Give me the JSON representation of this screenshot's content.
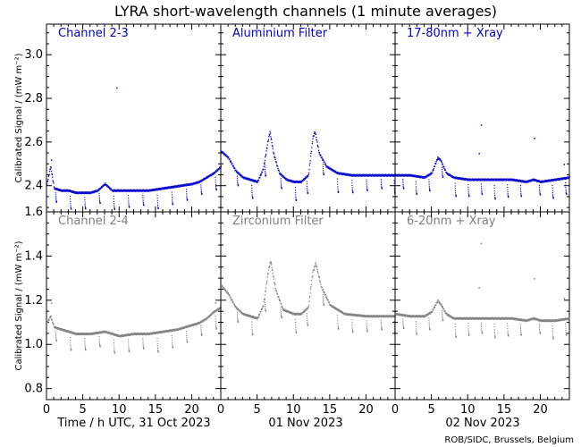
{
  "chart_data": {
    "type": "scatter",
    "title": "LYRA short-wavelength channels (1 minute averages)",
    "ylabel": "Calibrated Signal / (mW m⁻²)",
    "x_captions": [
      "Time / h UTC, 31 Oct 2023",
      "01 Nov 2023",
      "02 Nov 2023"
    ],
    "x_ticks": [
      0,
      5,
      10,
      15,
      20
    ],
    "x_range": [
      0,
      24
    ],
    "credit": "ROB/SIDC, Brussels, Belgium",
    "colors": {
      "top": "#0000cc",
      "bottom": "#808080"
    },
    "rows": [
      {
        "ylim": [
          2.28,
          3.14
        ],
        "yticks": [
          2.4,
          2.6,
          2.8,
          3.0
        ],
        "ytick_labels": [
          "2.4",
          "2.6",
          "2.8",
          "3.0"
        ],
        "panels": [
          {
            "label": "Channel 2-3",
            "series": [
              [
                0,
                2.41
              ],
              [
                0.5,
                2.49
              ],
              [
                1,
                2.39
              ],
              [
                2,
                2.38
              ],
              [
                3,
                2.38
              ],
              [
                4,
                2.37
              ],
              [
                5,
                2.37
              ],
              [
                6,
                2.37
              ],
              [
                7,
                2.38
              ],
              [
                8,
                2.41
              ],
              [
                9,
                2.38
              ],
              [
                10,
                2.38
              ],
              [
                12,
                2.38
              ],
              [
                14,
                2.38
              ],
              [
                16,
                2.39
              ],
              [
                18,
                2.4
              ],
              [
                20,
                2.41
              ],
              [
                21,
                2.42
              ],
              [
                22,
                2.44
              ],
              [
                23,
                2.46
              ],
              [
                24,
                2.49
              ]
            ],
            "dips": [
              1.2,
              3.2,
              5.2,
              7.2,
              9.2,
              11.2,
              13.2,
              15.2,
              17.2,
              19.2,
              21.2,
              23.2
            ],
            "outliers": [
              [
                9.6,
                2.85
              ],
              [
                0.6,
                2.52
              ]
            ]
          },
          {
            "label": "Aluminium Filter",
            "series": [
              [
                0,
                2.56
              ],
              [
                1,
                2.53
              ],
              [
                2,
                2.47
              ],
              [
                3,
                2.44
              ],
              [
                4,
                2.43
              ],
              [
                5,
                2.42
              ],
              [
                5.8,
                2.48
              ],
              [
                6.4,
                2.6
              ],
              [
                6.7,
                2.65
              ],
              [
                7.2,
                2.55
              ],
              [
                8,
                2.46
              ],
              [
                9,
                2.43
              ],
              [
                10,
                2.42
              ],
              [
                11,
                2.42
              ],
              [
                12,
                2.45
              ],
              [
                12.6,
                2.62
              ],
              [
                12.9,
                2.65
              ],
              [
                13.5,
                2.55
              ],
              [
                14.5,
                2.49
              ],
              [
                16,
                2.46
              ],
              [
                18,
                2.45
              ],
              [
                20,
                2.45
              ],
              [
                22,
                2.45
              ],
              [
                24,
                2.45
              ]
            ],
            "dips": [
              2.2,
              4.2,
              6.0,
              8.2,
              10.2,
              11.8,
              14.0,
              16.0,
              18.0,
              20.0,
              22.0,
              23.8
            ],
            "outliers": []
          },
          {
            "label": "17-80nm + Xray",
            "series": [
              [
                0,
                2.45
              ],
              [
                2,
                2.45
              ],
              [
                4,
                2.44
              ],
              [
                5,
                2.46
              ],
              [
                5.8,
                2.53
              ],
              [
                6.2,
                2.52
              ],
              [
                7,
                2.46
              ],
              [
                8,
                2.44
              ],
              [
                10,
                2.43
              ],
              [
                12,
                2.43
              ],
              [
                14,
                2.43
              ],
              [
                16,
                2.43
              ],
              [
                18,
                2.42
              ],
              [
                19,
                2.43
              ],
              [
                20,
                2.42
              ],
              [
                22,
                2.43
              ],
              [
                24,
                2.44
              ]
            ],
            "dips": [
              1.0,
              2.8,
              4.6,
              6.4,
              8.2,
              10.0,
              11.8,
              13.6,
              15.4,
              17.2,
              19.8,
              21.6,
              23.4
            ],
            "outliers": [
              [
                11.8,
                2.68
              ],
              [
                19.1,
                2.62
              ],
              [
                11.5,
                2.55
              ],
              [
                23.2,
                2.5
              ]
            ]
          }
        ]
      },
      {
        "ylim": [
          0.75,
          1.6
        ],
        "yticks": [
          0.8,
          1.0,
          1.2,
          1.4,
          1.6
        ],
        "ytick_labels": [
          "0.8",
          "1.0",
          "1.2",
          "1.4",
          "1.6"
        ],
        "panels": [
          {
            "label": "Channel 2-4",
            "series": [
              [
                0,
                1.1
              ],
              [
                0.5,
                1.13
              ],
              [
                1,
                1.08
              ],
              [
                2,
                1.07
              ],
              [
                3,
                1.06
              ],
              [
                4,
                1.05
              ],
              [
                6,
                1.05
              ],
              [
                8,
                1.06
              ],
              [
                10,
                1.04
              ],
              [
                12,
                1.05
              ],
              [
                14,
                1.05
              ],
              [
                16,
                1.06
              ],
              [
                18,
                1.07
              ],
              [
                20,
                1.09
              ],
              [
                21,
                1.1
              ],
              [
                22,
                1.12
              ],
              [
                23,
                1.15
              ],
              [
                24,
                1.17
              ]
            ],
            "dips": [
              1.2,
              3.2,
              5.2,
              7.2,
              9.2,
              11.2,
              13.2,
              15.2,
              17.2,
              19.2,
              21.2,
              23.2
            ],
            "outliers": [
              [
                0.6,
                1.19
              ],
              [
                23.2,
                1.19
              ]
            ]
          },
          {
            "label": "Zirconium Filter",
            "series": [
              [
                0,
                1.27
              ],
              [
                1,
                1.23
              ],
              [
                2,
                1.17
              ],
              [
                3,
                1.14
              ],
              [
                4,
                1.13
              ],
              [
                5,
                1.12
              ],
              [
                5.8,
                1.18
              ],
              [
                6.5,
                1.34
              ],
              [
                6.8,
                1.38
              ],
              [
                7.5,
                1.25
              ],
              [
                8.5,
                1.16
              ],
              [
                10,
                1.14
              ],
              [
                11,
                1.14
              ],
              [
                12,
                1.17
              ],
              [
                12.6,
                1.33
              ],
              [
                13,
                1.37
              ],
              [
                13.8,
                1.26
              ],
              [
                15,
                1.18
              ],
              [
                17,
                1.14
              ],
              [
                20,
                1.13
              ],
              [
                22,
                1.13
              ],
              [
                24,
                1.13
              ]
            ],
            "dips": [
              2.2,
              4.2,
              6.0,
              8.2,
              10.2,
              11.8,
              14.0,
              16.0,
              18.0,
              20.0,
              22.0,
              23.8
            ],
            "outliers": []
          },
          {
            "label": "6-20nm + Xray",
            "series": [
              [
                0,
                1.14
              ],
              [
                2,
                1.13
              ],
              [
                4,
                1.13
              ],
              [
                5,
                1.15
              ],
              [
                5.8,
                1.2
              ],
              [
                6.3,
                1.18
              ],
              [
                7,
                1.14
              ],
              [
                8,
                1.12
              ],
              [
                10,
                1.12
              ],
              [
                12,
                1.12
              ],
              [
                14,
                1.12
              ],
              [
                16,
                1.12
              ],
              [
                18,
                1.11
              ],
              [
                19,
                1.12
              ],
              [
                20,
                1.11
              ],
              [
                22,
                1.11
              ],
              [
                24,
                1.12
              ]
            ],
            "dips": [
              1.0,
              2.8,
              4.6,
              6.4,
              8.2,
              10.0,
              11.8,
              13.6,
              15.4,
              17.2,
              19.8,
              21.6,
              23.4
            ],
            "outliers": [
              [
                11.8,
                1.46
              ],
              [
                19.1,
                1.3
              ],
              [
                11.5,
                1.26
              ],
              [
                23.2,
                1.21
              ]
            ]
          }
        ]
      }
    ]
  }
}
